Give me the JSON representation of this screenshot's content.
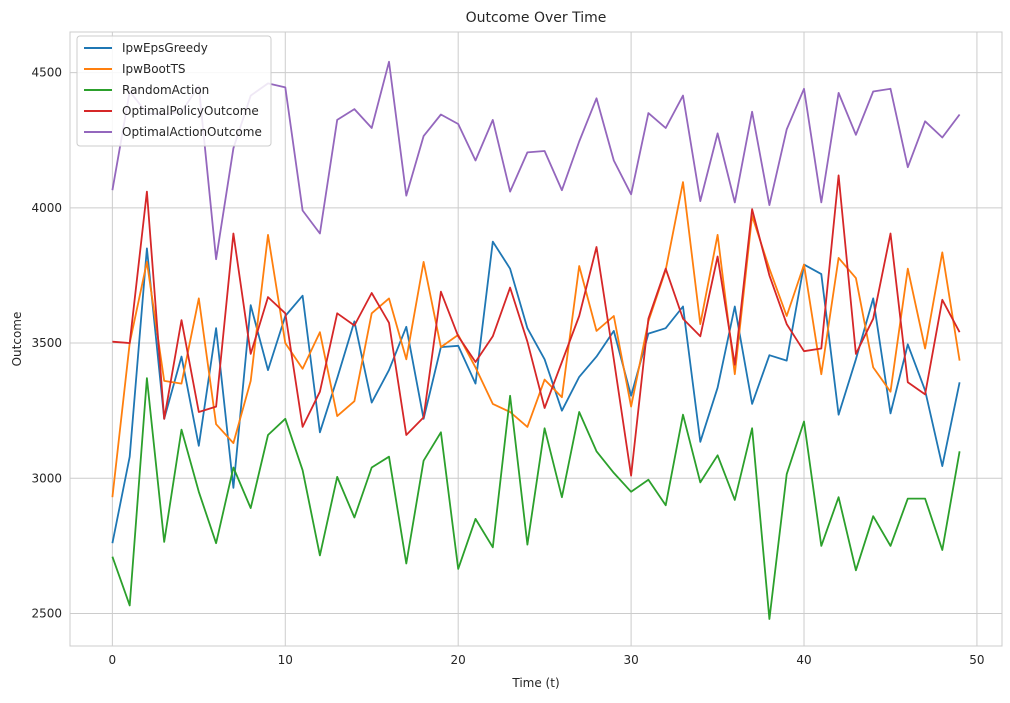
{
  "chart_data": {
    "type": "line",
    "title": "Outcome Over Time",
    "xlabel": "Time (t)",
    "ylabel": "Outcome",
    "xlim": [
      -2.45,
      51.45
    ],
    "ylim": [
      2380,
      4650
    ],
    "xticks": [
      0,
      10,
      20,
      30,
      40,
      50
    ],
    "yticks": [
      2500,
      3000,
      3500,
      4000,
      4500
    ],
    "grid": true,
    "legend_position": "top-left",
    "x": [
      0,
      1,
      2,
      3,
      4,
      5,
      6,
      7,
      8,
      9,
      10,
      11,
      12,
      13,
      14,
      15,
      16,
      17,
      18,
      19,
      20,
      21,
      22,
      23,
      24,
      25,
      26,
      27,
      28,
      29,
      30,
      31,
      32,
      33,
      34,
      35,
      36,
      37,
      38,
      39,
      40,
      41,
      42,
      43,
      44,
      45,
      46,
      47,
      48,
      49
    ],
    "series": [
      {
        "name": "IpwEpsGreedy",
        "color": "#1f77b4",
        "values": [
          2760,
          3080,
          3850,
          3220,
          3450,
          3120,
          3555,
          2965,
          3640,
          3400,
          3600,
          3675,
          3170,
          3370,
          3580,
          3280,
          3400,
          3560,
          3220,
          3485,
          3490,
          3350,
          3875,
          3775,
          3555,
          3440,
          3250,
          3375,
          3450,
          3545,
          3305,
          3535,
          3555,
          3635,
          3135,
          3335,
          3635,
          3275,
          3455,
          3435,
          3790,
          3755,
          3235,
          3440,
          3665,
          3240,
          3495,
          3325,
          3045,
          3355
        ]
      },
      {
        "name": "IpwBootTS",
        "color": "#ff7f0e",
        "values": [
          2930,
          3500,
          3800,
          3360,
          3350,
          3665,
          3200,
          3130,
          3360,
          3900,
          3500,
          3405,
          3540,
          3230,
          3285,
          3610,
          3665,
          3440,
          3800,
          3485,
          3530,
          3410,
          3275,
          3245,
          3190,
          3365,
          3300,
          3785,
          3545,
          3600,
          3265,
          3580,
          3770,
          4095,
          3570,
          3900,
          3385,
          3970,
          3775,
          3600,
          3790,
          3385,
          3815,
          3740,
          3410,
          3320,
          3775,
          3480,
          3835,
          3435
        ]
      },
      {
        "name": "RandomAction",
        "color": "#2ca02c",
        "values": [
          2710,
          2530,
          3370,
          2765,
          3180,
          2950,
          2760,
          3040,
          2890,
          3160,
          3220,
          3030,
          2715,
          3005,
          2855,
          3040,
          3080,
          2685,
          3065,
          3170,
          2665,
          2850,
          2745,
          3305,
          2755,
          3185,
          2930,
          3245,
          3100,
          3020,
          2950,
          2995,
          2900,
          3235,
          2985,
          3085,
          2920,
          3185,
          2480,
          3015,
          3210,
          2750,
          2930,
          2660,
          2860,
          2750,
          2925,
          2925,
          2735,
          3100
        ]
      },
      {
        "name": "OptimalPolicyOutcome",
        "color": "#d62728",
        "values": [
          3505,
          3500,
          4060,
          3220,
          3585,
          3245,
          3265,
          3905,
          3460,
          3670,
          3610,
          3190,
          3320,
          3610,
          3565,
          3685,
          3575,
          3160,
          3225,
          3690,
          3525,
          3430,
          3525,
          3705,
          3505,
          3260,
          3430,
          3600,
          3855,
          3440,
          3010,
          3590,
          3775,
          3590,
          3525,
          3820,
          3420,
          3995,
          3750,
          3570,
          3470,
          3480,
          4120,
          3460,
          3590,
          3905,
          3355,
          3310,
          3660,
          3540
        ]
      },
      {
        "name": "OptimalActionOutcome",
        "color": "#9467bd",
        "values": [
          4065,
          4430,
          4350,
          4345,
          4355,
          4450,
          3810,
          4220,
          4415,
          4460,
          4445,
          3990,
          3905,
          4325,
          4365,
          4295,
          4540,
          4045,
          4265,
          4345,
          4310,
          4175,
          4325,
          4060,
          4205,
          4210,
          4065,
          4245,
          4405,
          4175,
          4050,
          4350,
          4295,
          4415,
          4025,
          4275,
          4020,
          4355,
          4010,
          4290,
          4440,
          4020,
          4425,
          4270,
          4430,
          4440,
          4150,
          4320,
          4260,
          4345
        ]
      }
    ]
  }
}
